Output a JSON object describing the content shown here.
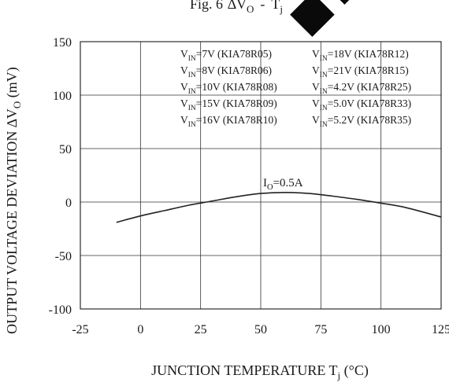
{
  "chart_data": {
    "type": "line",
    "title": {
      "prefix": "Fig. 6",
      "delta": "∆",
      "v": "V",
      "sub_o": "O",
      "separator": "-",
      "t": "T",
      "sub_j": "j"
    },
    "xlabel": {
      "main": "JUNCTION TEMPERATURE  T",
      "sub": "j",
      "unit": " (°C)"
    },
    "ylabel": {
      "before": "OUTPUT VOLTAGE DEVIATION ",
      "delta": "∆",
      "v": "V",
      "sub_o": "O",
      "unit": " (mV)"
    },
    "xlim": [
      -25,
      125
    ],
    "ylim": [
      -100,
      150
    ],
    "x_ticks": [
      "-25",
      "0",
      "25",
      "50",
      "75",
      "100",
      "125"
    ],
    "y_ticks": [
      "150",
      "100",
      "50",
      "0",
      "-50",
      "-100"
    ],
    "grid": true,
    "legend_entries": [
      {
        "v": "V",
        "sub": "IN",
        "text": "=7V (KIA78R05)"
      },
      {
        "v": "V",
        "sub": "IN",
        "text": "=8V (KIA78R06)"
      },
      {
        "v": "V",
        "sub": "IN",
        "text": "=10V (KIA78R08)"
      },
      {
        "v": "V",
        "sub": "IN",
        "text": "=15V (KIA78R09)"
      },
      {
        "v": "V",
        "sub": "IN",
        "text": "=16V (KIA78R10)"
      },
      {
        "v": "V",
        "sub": "IN",
        "text": "=18V (KIA78R12)"
      },
      {
        "v": "V",
        "sub": "IN",
        "text": "=21V (KIA78R15)"
      },
      {
        "v": "V",
        "sub": "IN",
        "text": "=4.2V (KIA78R25)"
      },
      {
        "v": "V",
        "sub": "IN",
        "text": "=5.0V (KIA78R33)"
      },
      {
        "v": "V",
        "sub": "IN",
        "text": "=5.2V (KIA78R35)"
      }
    ],
    "annotation": {
      "i": "I",
      "sub": "O",
      "text": "=0.5A"
    },
    "series": [
      {
        "x": [
          -10,
          0,
          10,
          20,
          30,
          40,
          50,
          60,
          70,
          80,
          90,
          100,
          110,
          125
        ],
        "y": [
          -19,
          -13,
          -8,
          -3,
          1,
          5,
          8,
          9,
          8,
          5.5,
          2.5,
          -1,
          -5,
          -14
        ]
      }
    ],
    "colors": {
      "line": "#222222",
      "grid": "#333333",
      "background": "#ffffff",
      "watermark": "#0a0a0a"
    }
  }
}
